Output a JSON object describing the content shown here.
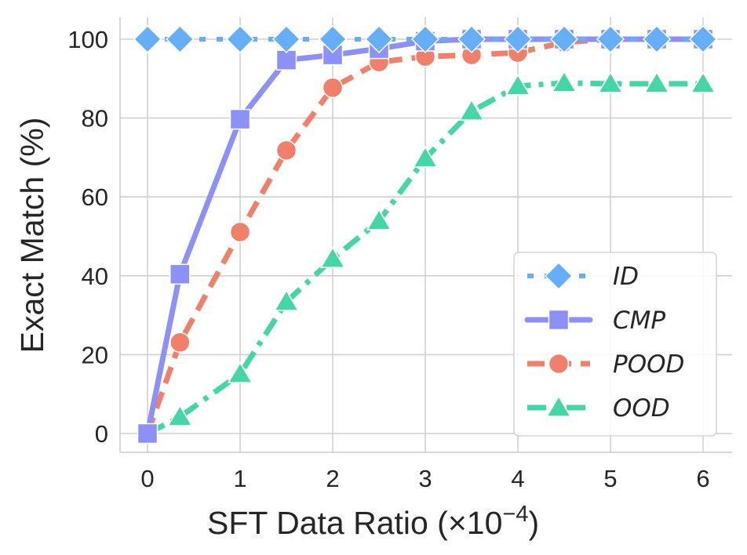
{
  "chart_data": {
    "type": "line",
    "title": "",
    "xlabel": "SFT Data Ratio (×10",
    "xlabel_exponent": "−4",
    "xlabel_close": ")",
    "ylabel": "Exact Match (%)",
    "xlim": [
      -0.3,
      6.3
    ],
    "ylim": [
      -5,
      105
    ],
    "xticks": [
      0,
      1,
      2,
      3,
      4,
      5,
      6
    ],
    "xtick_labels": [
      "0",
      "1",
      "2",
      "3",
      "4",
      "5",
      "6"
    ],
    "yticks": [
      0,
      20,
      40,
      60,
      80,
      100
    ],
    "ytick_labels": [
      "0",
      "20",
      "40",
      "60",
      "80",
      "100"
    ],
    "grid": true,
    "legend_position": "lower-right",
    "x": [
      0,
      0.35,
      1,
      1.5,
      2,
      2.5,
      3,
      3.5,
      4,
      4.5,
      5,
      5.5,
      6
    ],
    "series": [
      {
        "name": "ID",
        "color": "#64aefa",
        "marker": "diamond",
        "linestyle": "dotted",
        "values": [
          100,
          100,
          100,
          100,
          100,
          100,
          100,
          100,
          100,
          100,
          100,
          100,
          100
        ]
      },
      {
        "name": "CMP",
        "color": "#8c90f7",
        "marker": "square",
        "linestyle": "solid",
        "values": [
          0,
          40.4,
          79.7,
          94.7,
          96.0,
          97.6,
          99.5,
          100,
          100,
          100,
          100,
          100,
          100
        ]
      },
      {
        "name": "POOD",
        "color": "#f0806a",
        "marker": "circle",
        "linestyle": "dashed",
        "values": [
          0,
          23.1,
          51.1,
          71.8,
          87.7,
          94.2,
          95.6,
          96.0,
          96.6,
          99.2,
          100,
          100,
          100
        ]
      },
      {
        "name": "OOD",
        "color": "#45d6a8",
        "marker": "triangle",
        "linestyle": "dashdot",
        "values": [
          0,
          4.2,
          15.1,
          33.4,
          44.3,
          53.9,
          69.8,
          81.7,
          88.1,
          88.9,
          88.7,
          88.7,
          88.7
        ]
      }
    ]
  }
}
